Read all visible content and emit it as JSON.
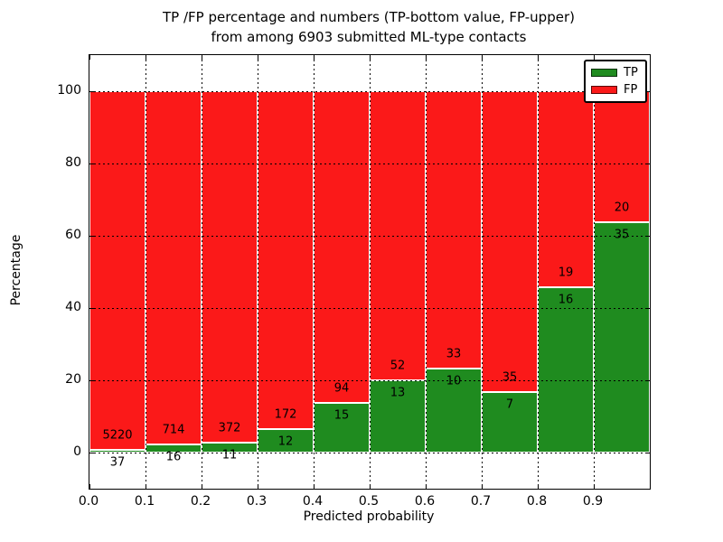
{
  "title": {
    "line1": "TP /FP percentage and numbers (TP-bottom value, FP-upper)",
    "line2": "from among 6903 submitted ML-type contacts"
  },
  "axes": {
    "xlabel": "Predicted probability",
    "ylabel": "Percentage",
    "x_tick_labels": [
      "0.0",
      "0.1",
      "0.2",
      "0.3",
      "0.4",
      "0.5",
      "0.6",
      "0.7",
      "0.8",
      "0.9"
    ],
    "y_tick_labels": [
      "0",
      "20",
      "40",
      "60",
      "80",
      "100"
    ],
    "y_tick_values": [
      0,
      20,
      40,
      60,
      80,
      100
    ],
    "xlim": [
      0.0,
      1.0
    ],
    "ylim": [
      -10,
      110
    ],
    "grid": "dotted black, both axes"
  },
  "legend": {
    "position": "upper-right",
    "items": [
      {
        "label": "TP",
        "color": "#1f8b1f"
      },
      {
        "label": "FP",
        "color": "#fb1919"
      }
    ]
  },
  "chart_data": {
    "type": "bar",
    "stacked": true,
    "normalization": "each 0.1-probability bin scaled to 100%",
    "title": "TP /FP percentage and numbers (TP-bottom value, FP-upper) from among 6903 submitted ML-type contacts",
    "xlabel": "Predicted probability",
    "ylabel": "Percentage",
    "ylim": [
      -10,
      110
    ],
    "total_contacts": 6903,
    "categories": [
      "0.0",
      "0.1",
      "0.2",
      "0.3",
      "0.4",
      "0.5",
      "0.6",
      "0.7",
      "0.8",
      "0.9"
    ],
    "series": [
      {
        "name": "TP",
        "color": "#1f8b1f",
        "values": [
          37,
          16,
          11,
          12,
          15,
          13,
          10,
          7,
          16,
          35
        ]
      },
      {
        "name": "FP",
        "color": "#fb1919",
        "values": [
          5220,
          714,
          372,
          172,
          94,
          52,
          33,
          35,
          19,
          20
        ]
      }
    ],
    "tp_percent_of_bin": [
      0.7,
      2.19,
      2.87,
      6.52,
      13.76,
      20.0,
      23.26,
      16.67,
      45.71,
      63.64
    ]
  }
}
